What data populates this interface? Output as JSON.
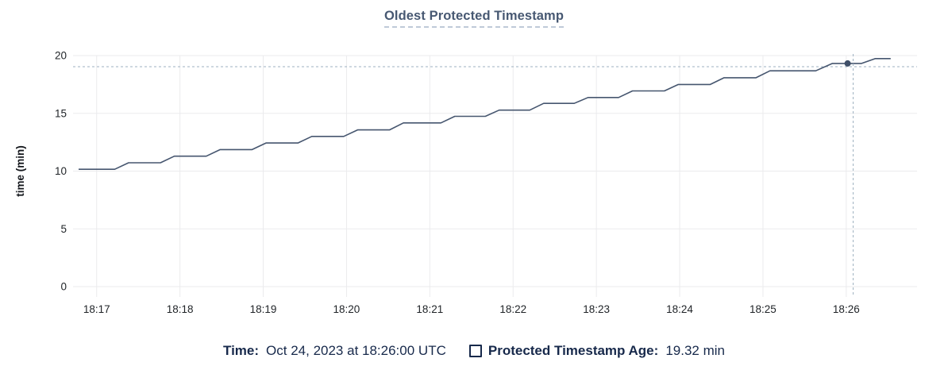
{
  "title": "Oldest Protected Timestamp",
  "colors": {
    "title": "#475872",
    "title_underline": "#bfcad8",
    "line": "#46566f",
    "dot": "#3f4f68",
    "crosshair": "#9db0c0",
    "grid": "#ebebed",
    "tick_text": "#1f2327",
    "axis_label_text": "#15181d",
    "legend_text": "#17294b",
    "background": "#ffffff"
  },
  "legend": {
    "time_label": "Time:",
    "time_value": "Oct 24, 2023 at 18:26:00 UTC",
    "series_swatch_icon": "checkbox-square-icon",
    "series_label": "Protected Timestamp Age:",
    "series_value": "19.32 min"
  },
  "chart_data": {
    "type": "line",
    "title": "Oldest Protected Timestamp",
    "xlabel": "",
    "ylabel": "time (min)",
    "ylim": [
      0,
      20
    ],
    "y_ticks": [
      0,
      5,
      10,
      15,
      20
    ],
    "x_tick_labels": [
      "18:17",
      "18:18",
      "18:19",
      "18:20",
      "18:21",
      "18:22",
      "18:23",
      "18:24",
      "18:25",
      "18:26"
    ],
    "x_tick_interval_seconds": 60,
    "x_domain_seconds_from_first_tick": [
      -17,
      591
    ],
    "grid": true,
    "legend_position": "bottom",
    "series": [
      {
        "name": "Protected Timestamp Age",
        "unit": "min",
        "points": [
          [
            -13,
            10.16
          ],
          [
            13,
            10.16
          ],
          [
            23,
            10.72
          ],
          [
            46,
            10.72
          ],
          [
            56,
            11.29
          ],
          [
            79,
            11.29
          ],
          [
            89,
            11.86
          ],
          [
            112,
            11.86
          ],
          [
            122,
            12.43
          ],
          [
            145,
            12.43
          ],
          [
            155,
            13.0
          ],
          [
            178,
            13.0
          ],
          [
            188,
            13.57
          ],
          [
            211,
            13.57
          ],
          [
            221,
            14.17
          ],
          [
            248,
            14.17
          ],
          [
            258,
            14.74
          ],
          [
            280,
            14.74
          ],
          [
            290,
            15.28
          ],
          [
            312,
            15.28
          ],
          [
            322,
            15.86
          ],
          [
            344,
            15.86
          ],
          [
            354,
            16.37
          ],
          [
            376,
            16.37
          ],
          [
            386,
            16.94
          ],
          [
            409,
            16.94
          ],
          [
            419,
            17.5
          ],
          [
            442,
            17.5
          ],
          [
            452,
            18.08
          ],
          [
            475,
            18.08
          ],
          [
            485,
            18.68
          ],
          [
            518,
            18.68
          ],
          [
            530,
            19.32
          ],
          [
            551,
            19.32
          ],
          [
            561,
            19.74
          ],
          [
            572,
            19.74
          ]
        ]
      }
    ],
    "hover": {
      "time_value": "Oct 24, 2023 at 18:26:00 UTC",
      "dot_t_seconds": 541,
      "value_min": 19.32,
      "crosshair_t_seconds": 545,
      "crosshair_value_min": 19.04
    }
  }
}
